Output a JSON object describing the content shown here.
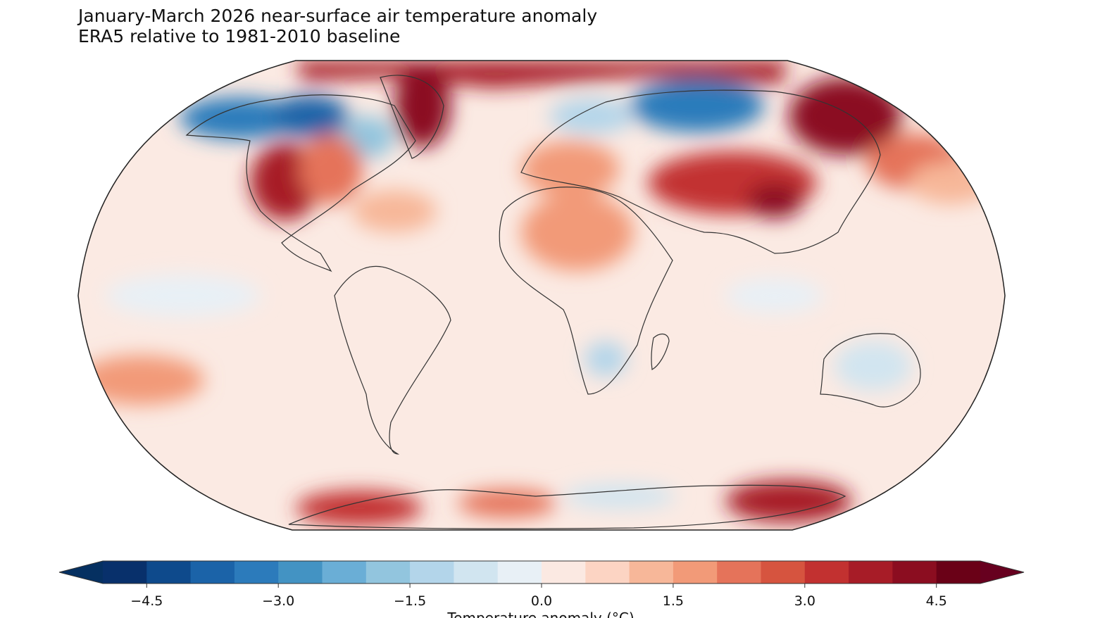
{
  "figure": {
    "title_line1": "January-March 2026 near-surface air temperature anomaly",
    "title_line2": "ERA5 relative to 1981-2010 baseline"
  },
  "map": {
    "projection": "Robinson",
    "field": "near-surface air temperature anomaly",
    "regions": [
      {
        "name": "Western North America",
        "anomaly": 4.0
      },
      {
        "name": "Northern Canada / Alaska",
        "anomaly": -3.5
      },
      {
        "name": "Hudson Bay region",
        "anomaly": -3.0
      },
      {
        "name": "Greenland / Baffin",
        "anomaly": 4.5
      },
      {
        "name": "Arctic Ocean",
        "anomaly": 4.5
      },
      {
        "name": "Northern Siberia (west)",
        "anomaly": -3.5
      },
      {
        "name": "Eastern Siberia",
        "anomaly": 5.0
      },
      {
        "name": "Central Asia / China",
        "anomaly": 4.0
      },
      {
        "name": "Sahara / North Africa",
        "anomaly": 2.0
      },
      {
        "name": "West Antarctica",
        "anomaly": 3.5
      },
      {
        "name": "East Antarctica",
        "anomaly": 4.0
      },
      {
        "name": "Australia interior",
        "anomaly": -1.0
      },
      {
        "name": "Southern Africa",
        "anomaly": -1.0
      }
    ]
  },
  "colorbar": {
    "label": "Temperature anomaly (°C)",
    "ticks": [
      "−4.5",
      "−3.0",
      "−1.5",
      "0.0",
      "1.5",
      "3.0",
      "4.5"
    ],
    "tick_values": [
      -4.5,
      -3.0,
      -1.5,
      0.0,
      1.5,
      3.0,
      4.5
    ],
    "range": [
      -5.0,
      5.0
    ],
    "step": 0.5,
    "extend": "both",
    "colors": [
      "#08306b",
      "#0e4a8c",
      "#1b63a8",
      "#2c7bbb",
      "#4393c3",
      "#6aaed6",
      "#92c5de",
      "#b3d5ea",
      "#d1e5f0",
      "#e8f0f6",
      "#fbe9e2",
      "#fcd4c3",
      "#f7b799",
      "#f29a78",
      "#e5735a",
      "#d6543f",
      "#c23130",
      "#a71c27",
      "#8b0d20",
      "#6a0117"
    ],
    "under_color": "#053061",
    "over_color": "#67001f"
  }
}
